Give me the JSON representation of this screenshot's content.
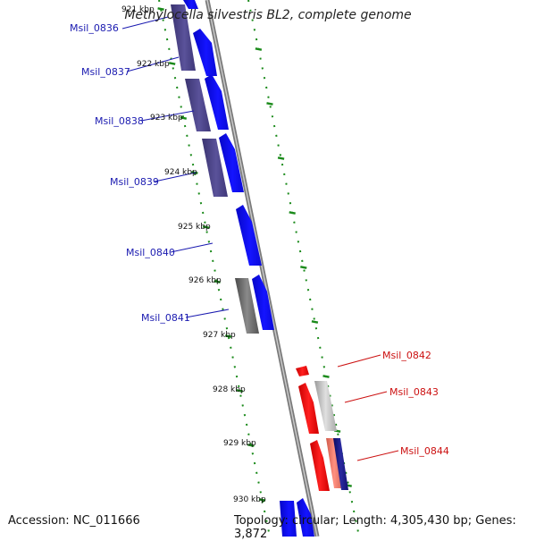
{
  "title": "Methylocella silvestris BL2, complete genome",
  "footer": {
    "accession": "Accession: NC_011666",
    "summary": "Topology: circular; Length: 4,305,430 bp; Genes: 3,872"
  },
  "colors": {
    "forward_gene": "#1010ee",
    "reverse_gene": "#4a4385",
    "highlight_forward": "#ee1010",
    "highlight_reverse": "#b8b8b8",
    "ticks": "#1a8a1a",
    "backbone": "#8a8a8a"
  },
  "kbp_ticks": [
    {
      "label": "921 kbp"
    },
    {
      "label": "922 kbp"
    },
    {
      "label": "923 kbp"
    },
    {
      "label": "924 kbp"
    },
    {
      "label": "925 kbp"
    },
    {
      "label": "926 kbp"
    },
    {
      "label": "927 kbp"
    },
    {
      "label": "928 kbp"
    },
    {
      "label": "929 kbp"
    },
    {
      "label": "930 kbp"
    }
  ],
  "gene_labels": [
    {
      "name": "Msil_0836",
      "color": "#1a1ab0"
    },
    {
      "name": "Msil_0837",
      "color": "#1a1ab0"
    },
    {
      "name": "Msil_0838",
      "color": "#1a1ab0"
    },
    {
      "name": "Msil_0839",
      "color": "#1a1ab0"
    },
    {
      "name": "Msil_0840",
      "color": "#1a1ab0"
    },
    {
      "name": "Msil_0841",
      "color": "#1a1ab0"
    },
    {
      "name": "Msil_0842",
      "color": "#cc1111"
    },
    {
      "name": "Msil_0843",
      "color": "#cc1111"
    },
    {
      "name": "Msil_0844",
      "color": "#cc1111"
    }
  ]
}
